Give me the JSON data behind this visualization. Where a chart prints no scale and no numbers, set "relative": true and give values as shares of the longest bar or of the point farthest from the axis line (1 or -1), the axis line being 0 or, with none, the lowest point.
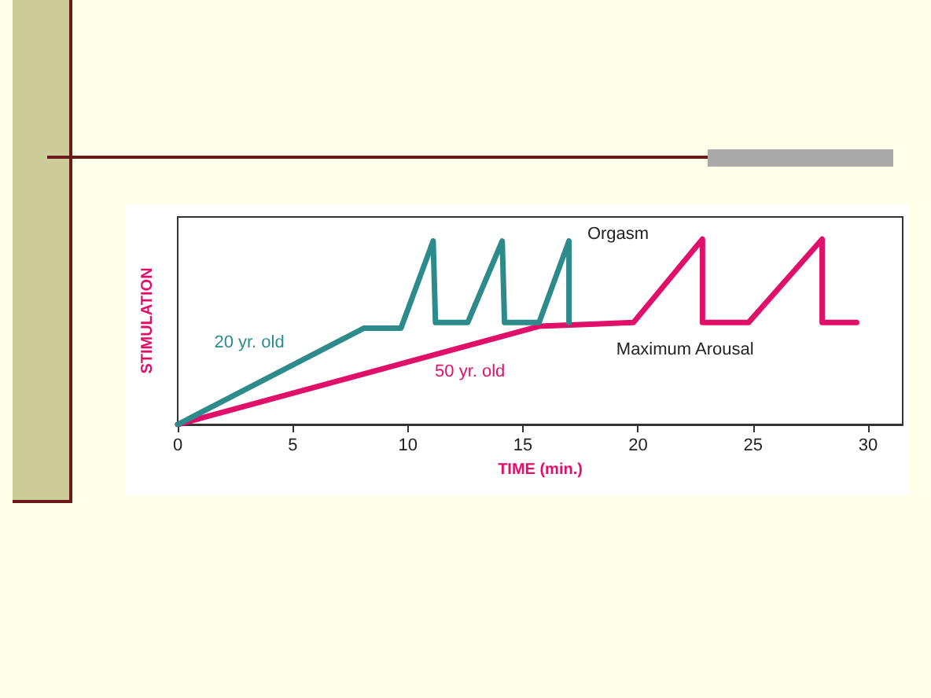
{
  "chart_data": {
    "type": "line",
    "relative": true,
    "xlabel": "TIME (min.)",
    "ylabel": "STIMULATION",
    "xlim": [
      0,
      31.5
    ],
    "xticks": [
      0,
      5,
      10,
      15,
      20,
      25,
      30
    ],
    "grid": false,
    "legend": false,
    "marker": "none",
    "line_style": "solid",
    "tick_labels": "x",
    "annotations": [
      "Orgasm",
      "Maximum Arousal"
    ],
    "series": [
      {
        "name": "20 yr. old",
        "color": "#2e8b8b",
        "x": [
          0,
          8.1,
          9.7,
          11.1,
          11.2,
          12.6,
          14.1,
          14.2,
          15.7,
          17.0,
          17.0
        ],
        "values": [
          0,
          0.52,
          0.52,
          0.99,
          0.55,
          0.55,
          0.99,
          0.55,
          0.55,
          0.99,
          0.55
        ]
      },
      {
        "name": "50 yr. old",
        "color": "#e0106a",
        "x": [
          0,
          15.7,
          19.8,
          22.8,
          22.8,
          24.8,
          28.0,
          28.0,
          29.5
        ],
        "values": [
          0,
          0.53,
          0.55,
          1.0,
          0.55,
          0.55,
          1.0,
          0.55,
          0.55
        ]
      }
    ]
  }
}
